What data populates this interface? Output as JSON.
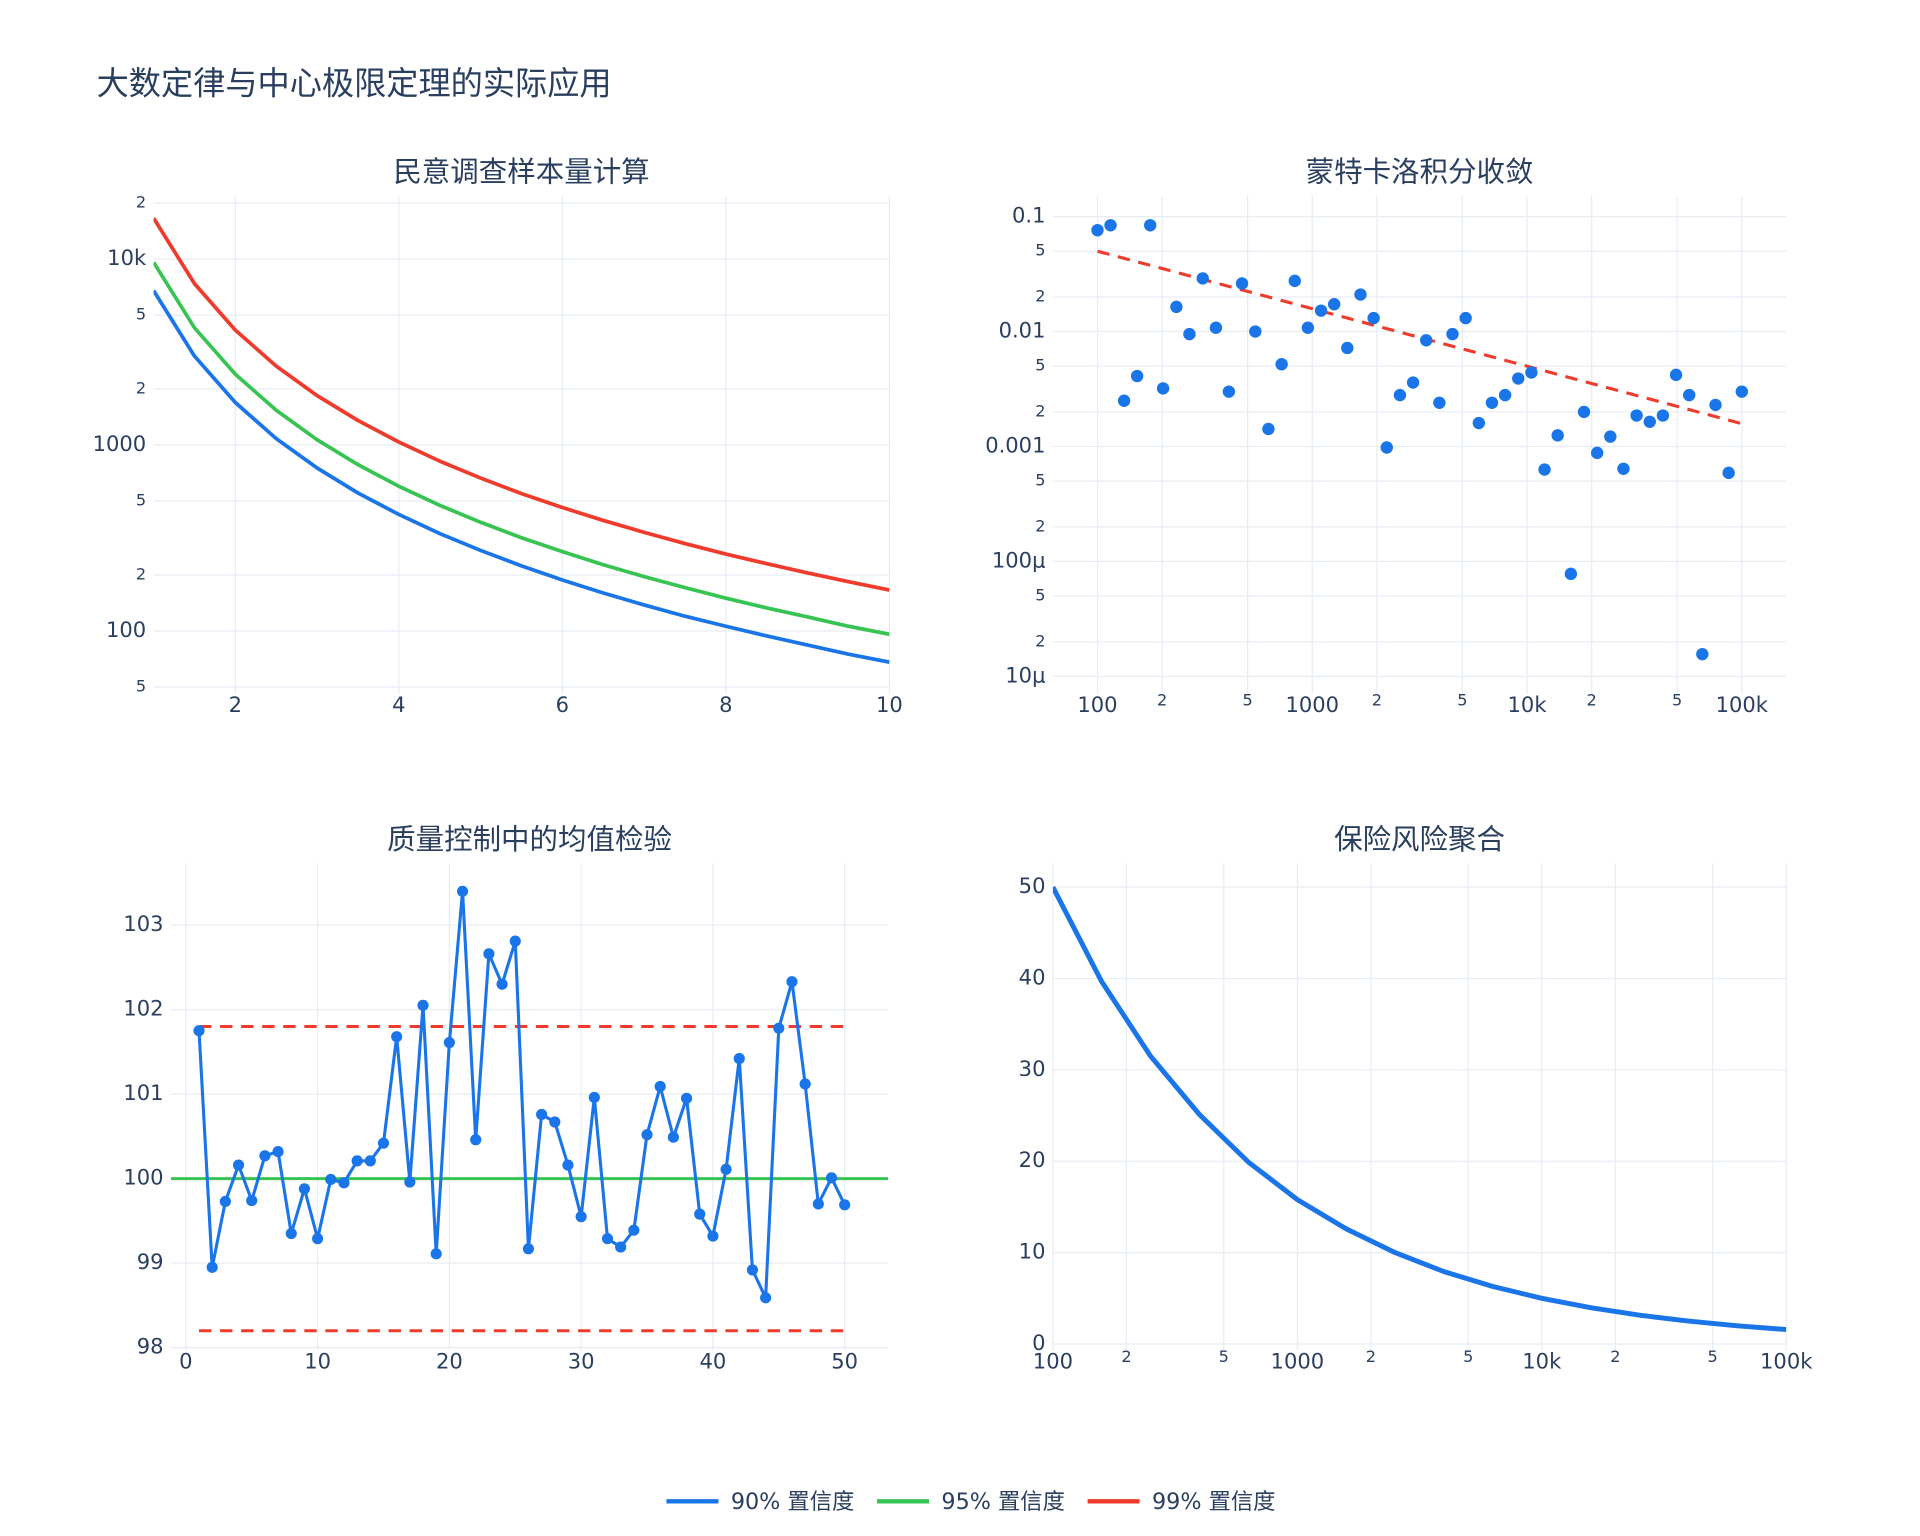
{
  "title": "大数定律与中心极限定理的实际应用",
  "chart_data": [
    {
      "type": "line",
      "title": "民意调查样本量计算",
      "x": [
        1,
        1.5,
        2,
        2.5,
        3,
        3.5,
        4,
        4.5,
        5,
        5.5,
        6,
        6.5,
        7,
        7.5,
        8,
        8.5,
        9,
        9.5,
        10
      ],
      "series": [
        {
          "name": "90% 置信度",
          "color": "#1a75e8",
          "values": [
            6765,
            3007,
            1691,
            1082,
            752,
            552,
            423,
            334,
            271,
            224,
            188,
            160,
            138,
            120,
            106,
            94,
            84,
            75,
            68
          ]
        },
        {
          "name": "95% 置信度",
          "color": "#37c452",
          "values": [
            9604,
            4268,
            2401,
            1537,
            1067,
            784,
            600,
            474,
            384,
            317,
            267,
            227,
            196,
            171,
            150,
            133,
            119,
            106,
            96
          ]
        },
        {
          "name": "99% 置信度",
          "color": "#ef3b2c",
          "values": [
            16588,
            7372,
            4147,
            2654,
            1843,
            1354,
            1037,
            819,
            664,
            548,
            461,
            393,
            339,
            295,
            259,
            230,
            205,
            184,
            166
          ]
        }
      ],
      "xlim": [
        1,
        10
      ],
      "xticks": [
        2,
        4,
        6,
        8,
        10
      ],
      "ylog": true,
      "ylim": [
        46,
        21900
      ],
      "yticks": [
        {
          "value": 50,
          "label": "5"
        },
        100,
        {
          "value": 200,
          "label": "2"
        },
        {
          "value": 500,
          "label": "5"
        },
        1000,
        {
          "value": 2000,
          "label": "2"
        },
        {
          "value": 5000,
          "label": "5"
        },
        {
          "value": 10000,
          "label": "10k"
        },
        {
          "value": 20000,
          "label": "2"
        }
      ],
      "grid": true
    },
    {
      "type": "scatter",
      "title": "蒙特卡洛积分收敛",
      "color": "#1a75e8",
      "x": [
        100,
        115,
        133,
        153,
        176,
        202,
        233,
        268,
        309,
        356,
        409,
        471,
        543,
        625,
        720,
        829,
        954,
        1099,
        1265,
        1456,
        1677,
        1931,
        2223,
        2560,
        2947,
        3393,
        3907,
        4498,
        5179,
        5964,
        6866,
        7906,
        9103,
        10481,
        12068,
        13895,
        15999,
        18421,
        21210,
        24421,
        28118,
        32375,
        37276,
        42919,
        49417,
        56899,
        65513,
        75431,
        86851,
        100000
      ],
      "values": [
        0.0762,
        0.0841,
        0.0025,
        0.0041,
        0.0841,
        0.0032,
        0.0164,
        0.0095,
        0.029,
        0.0108,
        0.003,
        0.0262,
        0.01,
        0.00142,
        0.0052,
        0.0276,
        0.0108,
        0.0152,
        0.0173,
        0.0072,
        0.021,
        0.0131,
        0.00098,
        0.0028,
        0.0036,
        0.0084,
        0.0024,
        0.0095,
        0.0131,
        0.0016,
        0.0024,
        0.0028,
        0.0039,
        0.0044,
        0.00063,
        0.00125,
        7.8e-05,
        0.002,
        0.00088,
        0.00122,
        0.00064,
        0.00186,
        0.00164,
        0.00186,
        0.0042,
        0.0028,
        1.56e-05,
        0.0023,
        0.00059,
        0.003
      ],
      "trend": {
        "x": [
          100,
          100000
        ],
        "values": [
          0.05,
          0.00158
        ],
        "color": "#ef3b2c",
        "dash": true
      },
      "xlog": true,
      "xlim": [
        62,
        161000
      ],
      "xticks": [
        100,
        {
          "value": 200,
          "label": "2"
        },
        {
          "value": 500,
          "label": "5"
        },
        1000,
        {
          "value": 2000,
          "label": "2"
        },
        {
          "value": 5000,
          "label": "5"
        },
        {
          "value": 10000,
          "label": "10k"
        },
        {
          "value": 20000,
          "label": "2"
        },
        {
          "value": 50000,
          "label": "5"
        },
        {
          "value": 100000,
          "label": "100k"
        }
      ],
      "ylog": true,
      "ylim": [
        7.07e-06,
        0.152
      ],
      "yticks": [
        {
          "value": 1e-05,
          "label": "10μ"
        },
        {
          "value": 2e-05,
          "label": "2"
        },
        {
          "value": 5e-05,
          "label": "5"
        },
        {
          "value": 0.0001,
          "label": "100μ"
        },
        {
          "value": 0.0002,
          "label": "2"
        },
        {
          "value": 0.0005,
          "label": "5"
        },
        0.001,
        {
          "value": 0.002,
          "label": "2"
        },
        {
          "value": 0.005,
          "label": "5"
        },
        0.01,
        {
          "value": 0.02,
          "label": "2"
        },
        {
          "value": 0.05,
          "label": "5"
        },
        0.1
      ],
      "grid": true
    },
    {
      "type": "line",
      "title": "质量控制中的均值检验",
      "color": "#1a75e8",
      "markers": true,
      "x": [
        1,
        2,
        3,
        4,
        5,
        6,
        7,
        8,
        9,
        10,
        11,
        12,
        13,
        14,
        15,
        16,
        17,
        18,
        19,
        20,
        21,
        22,
        23,
        24,
        25,
        26,
        27,
        28,
        29,
        30,
        31,
        32,
        33,
        34,
        35,
        36,
        37,
        38,
        39,
        40,
        41,
        42,
        43,
        44,
        45,
        46,
        47,
        48,
        49,
        50
      ],
      "values": [
        101.75,
        98.95,
        99.73,
        100.16,
        99.74,
        100.27,
        100.32,
        99.35,
        99.88,
        99.29,
        99.99,
        99.95,
        100.21,
        100.21,
        100.42,
        101.68,
        99.96,
        102.05,
        99.11,
        101.61,
        103.4,
        100.46,
        102.66,
        102.3,
        102.81,
        99.17,
        100.76,
        100.67,
        100.16,
        99.55,
        100.96,
        99.29,
        99.19,
        99.39,
        100.52,
        101.09,
        100.49,
        100.95,
        99.58,
        99.32,
        100.11,
        101.42,
        98.92,
        98.59,
        101.78,
        102.33,
        101.12,
        99.7,
        100.01,
        99.69
      ],
      "hlines": [
        {
          "value": 100,
          "color": "#37c452"
        },
        {
          "value": 101.8,
          "x": [
            1,
            50
          ],
          "color": "#ef3b2c",
          "dash": true
        },
        {
          "value": 98.2,
          "x": [
            1,
            50
          ],
          "color": "#ef3b2c",
          "dash": true
        }
      ],
      "xlim": [
        -1.13,
        53.3
      ],
      "xticks": [
        0,
        10,
        20,
        30,
        40,
        50
      ],
      "ylim": [
        97.97,
        103.73
      ],
      "yticks": [
        98,
        99,
        100,
        101,
        102,
        103
      ],
      "grid": true
    },
    {
      "type": "line",
      "title": "保险风险聚合",
      "color": "#1a75e8",
      "x": [
        100,
        158,
        251,
        398,
        631,
        1000,
        1585,
        2512,
        3981,
        6310,
        10000,
        15849,
        25119,
        39811,
        63096,
        100000
      ],
      "values": [
        50,
        39.7,
        31.5,
        25.1,
        19.9,
        15.8,
        12.6,
        10,
        7.92,
        6.29,
        5,
        3.97,
        3.15,
        2.51,
        1.99,
        1.58
      ],
      "xlog": true,
      "xlim": [
        100,
        100000
      ],
      "xticks": [
        100,
        {
          "value": 200,
          "label": "2"
        },
        {
          "value": 500,
          "label": "5"
        },
        1000,
        {
          "value": 2000,
          "label": "2"
        },
        {
          "value": 5000,
          "label": "5"
        },
        {
          "value": 10000,
          "label": "10k"
        },
        {
          "value": 20000,
          "label": "2"
        },
        {
          "value": 50000,
          "label": "5"
        },
        {
          "value": 100000,
          "label": "100k"
        }
      ],
      "ylim": [
        -0.68,
        52.6
      ],
      "yticks": [
        0,
        10,
        20,
        30,
        40,
        50
      ],
      "grid": true
    }
  ]
}
